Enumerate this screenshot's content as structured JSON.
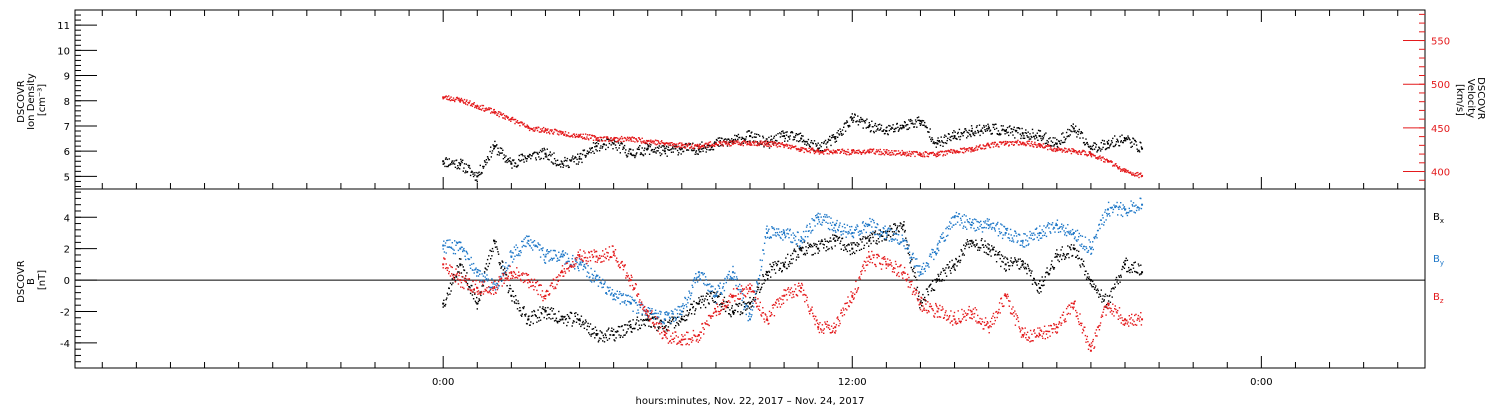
{
  "chart_data": [
    {
      "type": "scatter",
      "panel": "top",
      "left_axis": {
        "label_lines": [
          "DSCOVR",
          "Ion Density",
          "[cm⁻³]"
        ],
        "ylim": [
          4.5,
          11.6
        ],
        "ticks": [
          5,
          6,
          7,
          8,
          9,
          10,
          11
        ],
        "tick_labels": [
          "5",
          "6",
          "7",
          "8",
          "9",
          "10",
          "11"
        ]
      },
      "right_axis": {
        "label_lines": [
          "DSCOVR",
          "Velocity",
          "[km/s]"
        ],
        "ylim": [
          380,
          585
        ],
        "ticks": [
          400,
          450,
          500,
          550
        ],
        "tick_labels": [
          "400",
          "450",
          "500",
          "550"
        ],
        "color": "#e41a1c"
      },
      "series": [
        {
          "color": "#000000",
          "axis": "left",
          "x": [
            0,
            0.5,
            1,
            1.5,
            2,
            2.5,
            3,
            3.5,
            4,
            4.5,
            5,
            5.5,
            6,
            6.5,
            7,
            7.5,
            8,
            8.5,
            9,
            9.5,
            10,
            10.5,
            11,
            11.5,
            12,
            12.5,
            13,
            13.5,
            14,
            14.5,
            15,
            15.5,
            16,
            16.5,
            17,
            17.5,
            18,
            18.5,
            19,
            19.5,
            20,
            20.5
          ],
          "values": [
            5.6,
            5.5,
            5.0,
            6.2,
            5.5,
            5.8,
            5.9,
            5.5,
            5.7,
            6.2,
            6.3,
            5.9,
            6.1,
            6.0,
            6.1,
            6.1,
            6.3,
            6.4,
            6.6,
            6.3,
            6.6,
            6.5,
            6.1,
            6.5,
            7.3,
            7.0,
            6.8,
            7.0,
            7.2,
            6.3,
            6.6,
            6.8,
            6.9,
            6.8,
            6.7,
            6.6,
            6.3,
            6.9,
            6.1,
            6.3,
            6.5,
            6.1
          ]
        },
        {
          "color": "#e41a1c",
          "axis": "right",
          "x": [
            0,
            0.5,
            1,
            1.5,
            2,
            2.5,
            3,
            3.5,
            4,
            4.5,
            5,
            5.5,
            6,
            6.5,
            7,
            7.5,
            8,
            8.5,
            9,
            9.5,
            10,
            10.5,
            11,
            11.5,
            12,
            12.5,
            13,
            13.5,
            14,
            14.5,
            15,
            15.5,
            16,
            16.5,
            17,
            17.5,
            18,
            18.5,
            19,
            19.5,
            20,
            20.5
          ],
          "values": [
            485,
            482,
            475,
            468,
            460,
            450,
            447,
            444,
            441,
            438,
            437,
            437,
            435,
            432,
            430,
            429,
            432,
            432,
            433,
            432,
            430,
            425,
            423,
            423,
            422,
            423,
            422,
            421,
            420,
            420,
            423,
            425,
            430,
            432,
            433,
            430,
            425,
            423,
            420,
            412,
            400,
            395
          ]
        }
      ]
    },
    {
      "type": "scatter",
      "panel": "bottom",
      "left_axis": {
        "label_lines": [
          "DSCOVR",
          "B",
          "[nT]"
        ],
        "ylim": [
          -5.6,
          5.8
        ],
        "ticks": [
          -4,
          -2,
          0,
          2,
          4
        ],
        "tick_labels": [
          "-4",
          "-2",
          "0",
          "2",
          "4"
        ]
      },
      "zero_line": true,
      "series": [
        {
          "name": "Bx",
          "color": "#000000",
          "x": [
            0,
            0.5,
            1,
            1.5,
            2,
            2.5,
            3,
            3.5,
            4,
            4.5,
            5,
            5.5,
            6,
            6.5,
            7,
            7.5,
            8,
            8.5,
            9,
            9.5,
            10,
            10.5,
            11,
            11.5,
            12,
            12.5,
            13,
            13.5,
            14,
            14.5,
            15,
            15.5,
            16,
            16.5,
            17,
            17.5,
            18,
            18.5,
            19,
            19.5,
            20,
            20.5
          ],
          "values": [
            -1.5,
            1.0,
            -1.5,
            2.5,
            -1.0,
            -2.5,
            -2.0,
            -2.5,
            -2.5,
            -3.5,
            -3.5,
            -3.0,
            -2.5,
            -3.0,
            -2.5,
            -1.5,
            -1.0,
            -2.0,
            -1.5,
            0.5,
            1.0,
            2.0,
            2.0,
            2.5,
            2.0,
            2.5,
            3.0,
            3.5,
            -1.5,
            0.0,
            1.0,
            2.5,
            2.0,
            1.0,
            1.0,
            -0.5,
            1.5,
            2.0,
            0.0,
            -1.5,
            1.0,
            0.5
          ]
        },
        {
          "name": "By",
          "color": "#1f78c8",
          "x": [
            0,
            0.5,
            1,
            1.5,
            2,
            2.5,
            3,
            3.5,
            4,
            4.5,
            5,
            5.5,
            6,
            6.5,
            7,
            7.5,
            8,
            8.5,
            9,
            9.5,
            10,
            10.5,
            11,
            11.5,
            12,
            12.5,
            13,
            13.5,
            14,
            14.5,
            15,
            15.5,
            16,
            16.5,
            17,
            17.5,
            18,
            18.5,
            19,
            19.5,
            20,
            20.5
          ],
          "values": [
            2.2,
            2.0,
            0.5,
            -0.5,
            1.5,
            2.5,
            1.5,
            1.5,
            1.0,
            0.0,
            -1.0,
            -1.5,
            -2.0,
            -2.5,
            -2.0,
            0.5,
            -1.0,
            0.5,
            -2.5,
            3.0,
            3.0,
            2.5,
            4.0,
            3.5,
            3.0,
            3.5,
            3.0,
            2.5,
            0.5,
            2.0,
            4.0,
            3.5,
            3.5,
            3.0,
            2.5,
            3.0,
            3.5,
            3.0,
            2.0,
            4.5,
            4.5,
            4.8
          ]
        },
        {
          "name": "Bz",
          "color": "#e41a1c",
          "x": [
            0,
            0.5,
            1,
            1.5,
            2,
            2.5,
            3,
            3.5,
            4,
            4.5,
            5,
            5.5,
            6,
            6.5,
            7,
            7.5,
            8,
            8.5,
            9,
            9.5,
            10,
            10.5,
            11,
            11.5,
            12,
            12.5,
            13,
            13.5,
            14,
            14.5,
            15,
            15.5,
            16,
            16.5,
            17,
            17.5,
            18,
            18.5,
            19,
            19.5,
            20,
            20.5
          ],
          "values": [
            1.0,
            0.0,
            -0.5,
            -0.5,
            0.5,
            0.0,
            -1.0,
            0.5,
            1.5,
            1.5,
            1.8,
            0.0,
            -2.0,
            -3.5,
            -3.8,
            -3.5,
            -2.0,
            -1.0,
            -0.5,
            -2.5,
            -1.0,
            -0.5,
            -3.0,
            -3.0,
            -1.0,
            1.5,
            1.0,
            0.5,
            -1.5,
            -2.0,
            -2.5,
            -2.0,
            -3.0,
            -1.0,
            -3.5,
            -3.5,
            -3.0,
            -1.5,
            -4.5,
            -1.5,
            -2.5,
            -2.5
          ]
        }
      ],
      "legend": {
        "placement": "right",
        "entries": [
          {
            "base": "B",
            "sub": "x",
            "color": "#000000"
          },
          {
            "base": "B",
            "sub": "y",
            "color": "#1f78c8"
          },
          {
            "base": "B",
            "sub": "z",
            "color": "#e41a1c"
          }
        ]
      }
    }
  ],
  "x_axis": {
    "label": "hours:minutes, Nov. 22, 2017 – Nov. 24, 2017",
    "xlim": [
      -10.8,
      28.8
    ],
    "major_ticks": [
      0,
      12,
      24
    ],
    "major_tick_labels": [
      "0:00",
      "12:00",
      "0:00"
    ],
    "minor_tick_step": 1
  }
}
